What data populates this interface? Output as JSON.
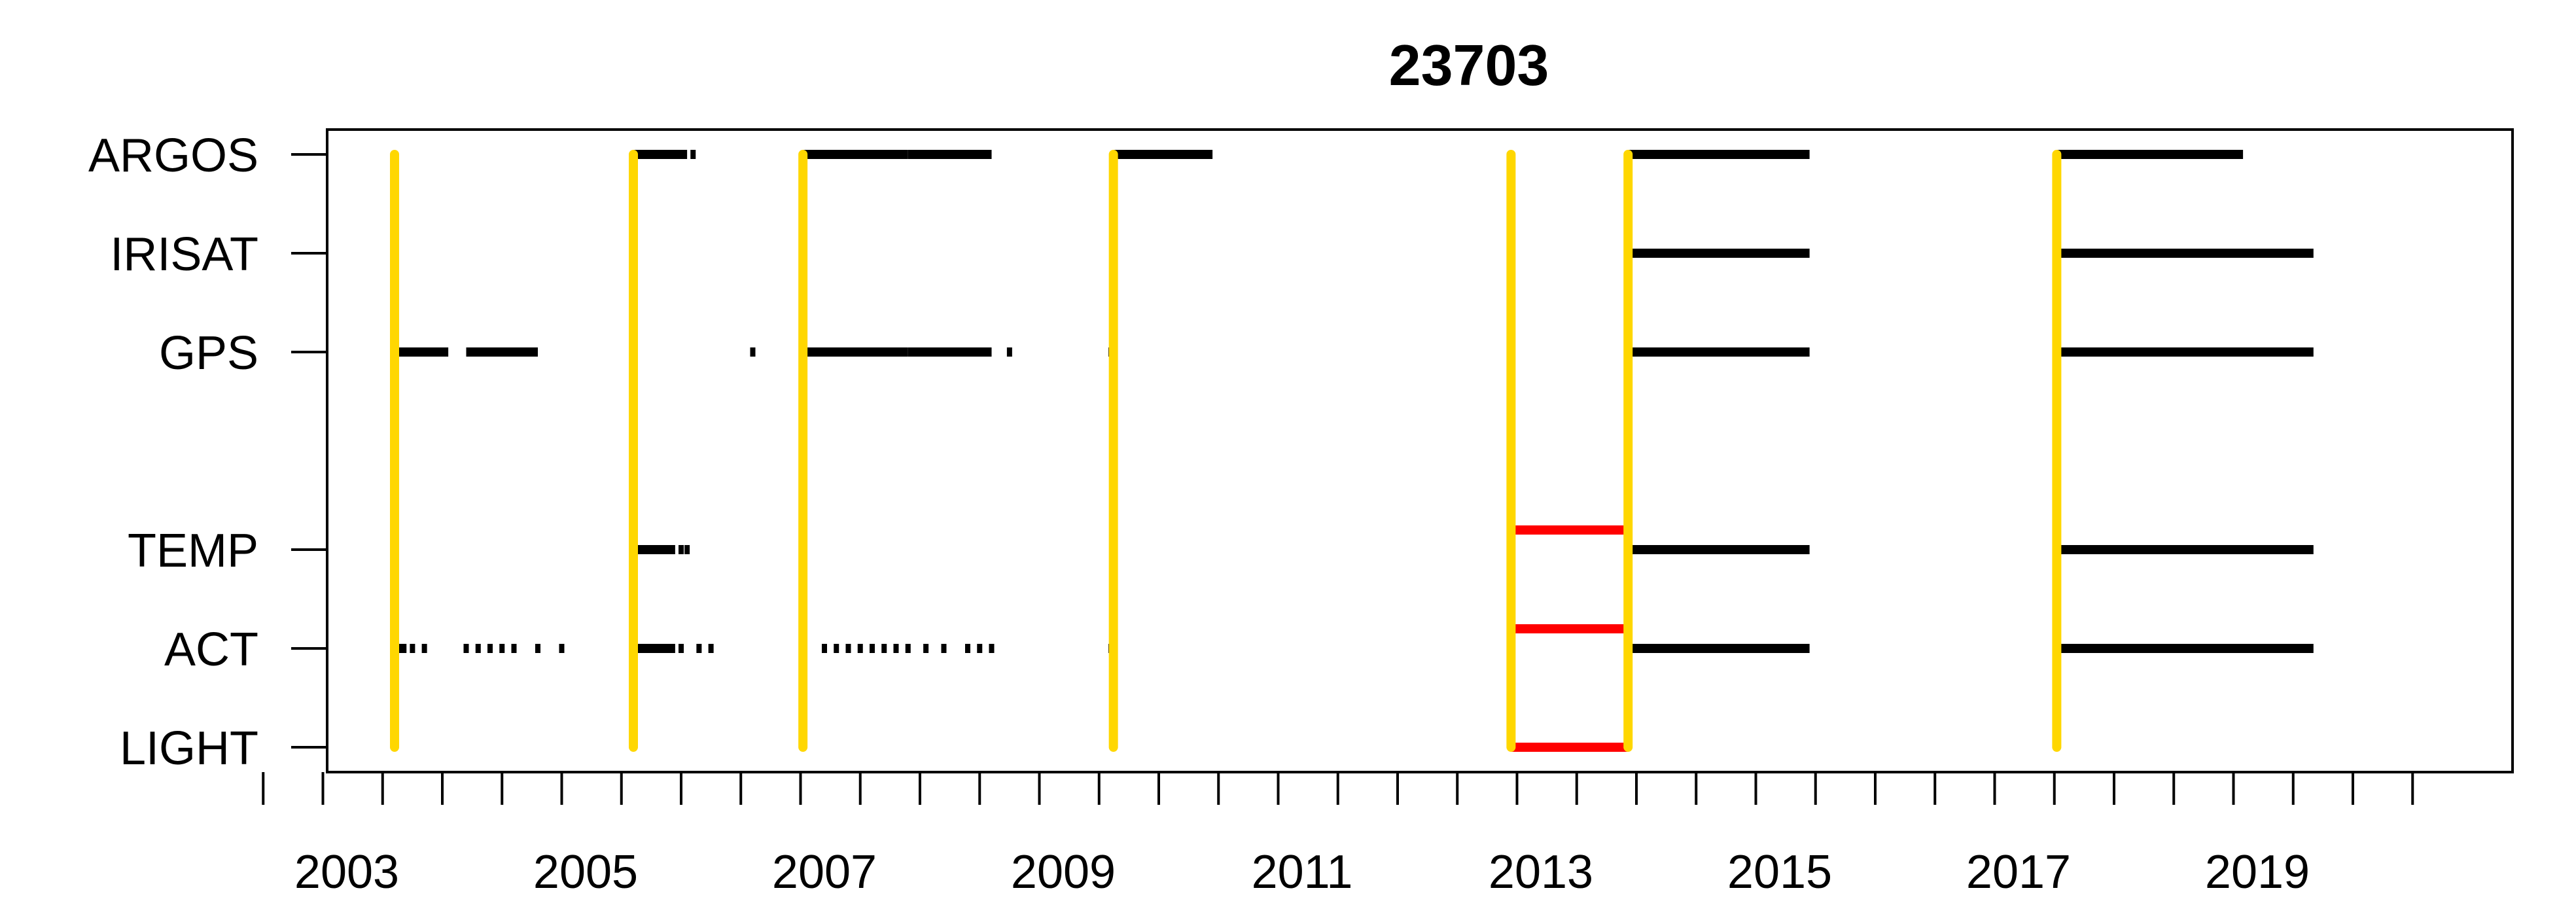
{
  "chart_data": {
    "type": "timeline",
    "title": "23703",
    "x_range": [
      2002.0,
      2020.5
    ],
    "x_tick_labels": [
      "2003",
      "2005",
      "2007",
      "2009",
      "2011",
      "2013",
      "2015",
      "2017",
      "2019"
    ],
    "x_minor_ticks": [
      2002.3,
      2002.8,
      2003.3,
      2003.8,
      2004.3,
      2004.8,
      2005.3,
      2005.8,
      2006.3,
      2006.8,
      2007.3,
      2007.8,
      2008.3,
      2008.8,
      2009.3,
      2009.8,
      2010.3,
      2010.8,
      2011.3,
      2011.8,
      2012.3,
      2012.8,
      2013.3,
      2013.8,
      2014.3,
      2014.8,
      2015.3,
      2015.8,
      2016.3,
      2016.8,
      2017.3,
      2017.8,
      2018.3,
      2018.8,
      2019.3,
      2019.8,
      2020.3
    ],
    "rows": [
      {
        "label": "ARGOS",
        "level": 6
      },
      {
        "label": "IRISAT",
        "level": 5
      },
      {
        "label": "GPS",
        "level": 4
      },
      {
        "label": "TEMP",
        "level": 2
      },
      {
        "label": "ACT",
        "level": 1
      },
      {
        "label": "LIGHT",
        "level": 0
      }
    ],
    "segments": {
      "ARGOS": [
        [
          2005.4,
          2005.85
        ],
        [
          2006.82,
          2007.7
        ],
        [
          2007.7,
          2008.4
        ],
        [
          2009.42,
          2010.25
        ],
        [
          2013.73,
          2015.25
        ],
        [
          2017.32,
          2018.88
        ]
      ],
      "IRISAT": [
        [
          2013.73,
          2015.25
        ],
        [
          2017.32,
          2019.47
        ]
      ],
      "GPS": [
        [
          2003.4,
          2003.85
        ],
        [
          2004.0,
          2004.6
        ],
        [
          2006.82,
          2007.7
        ],
        [
          2007.7,
          2008.4
        ],
        [
          2013.73,
          2015.25
        ],
        [
          2017.32,
          2019.47
        ]
      ],
      "TEMP": [
        [
          2005.4,
          2005.75
        ],
        [
          2013.73,
          2015.25
        ],
        [
          2017.32,
          2019.47
        ]
      ],
      "ACT": [
        [
          2003.4,
          2003.5
        ],
        [
          2005.4,
          2005.75
        ],
        [
          2013.73,
          2015.25
        ],
        [
          2017.32,
          2019.47
        ]
      ]
    },
    "sparse_marks": {
      "ARGOS": [
        2005.9,
        2007.9,
        2008.0,
        2008.1,
        2008.2,
        2008.3
      ],
      "GPS": [
        2004.55,
        2006.4,
        2008.55,
        2009.4,
        2007.9,
        2008.1,
        2008.25
      ],
      "TEMP": [
        2005.8,
        2005.85
      ],
      "ACT": [
        2003.55,
        2003.65,
        2004.0,
        2004.1,
        2004.2,
        2004.3,
        2004.4,
        2004.6,
        2004.8,
        2005.8,
        2005.95,
        2006.05,
        2007.0,
        2007.1,
        2007.2,
        2007.3,
        2007.4,
        2007.5,
        2007.6,
        2007.7,
        2007.85,
        2008.0,
        2008.2,
        2008.3,
        2008.4,
        2009.4
      ]
    },
    "deployments": [
      {
        "x": 2003.4,
        "top_level": 6
      },
      {
        "x": 2005.4,
        "top_level": 6
      },
      {
        "x": 2006.82,
        "top_level": 6
      },
      {
        "x": 2009.42,
        "top_level": 6
      },
      {
        "x": 2012.75,
        "top_level": 6
      },
      {
        "x": 2013.73,
        "top_level": 6
      },
      {
        "x": 2017.32,
        "top_level": 6
      }
    ],
    "gaps": [
      {
        "row": "TEMP",
        "x": [
          2012.75,
          2013.73
        ]
      },
      {
        "row": "ACT",
        "x": [
          2012.75,
          2013.73
        ]
      },
      {
        "row": "LIGHT",
        "x": [
          2012.75,
          2013.73
        ]
      }
    ],
    "colors": {
      "deployment": "#FFD700",
      "gap": "#FF0000",
      "data": "#000000"
    }
  }
}
